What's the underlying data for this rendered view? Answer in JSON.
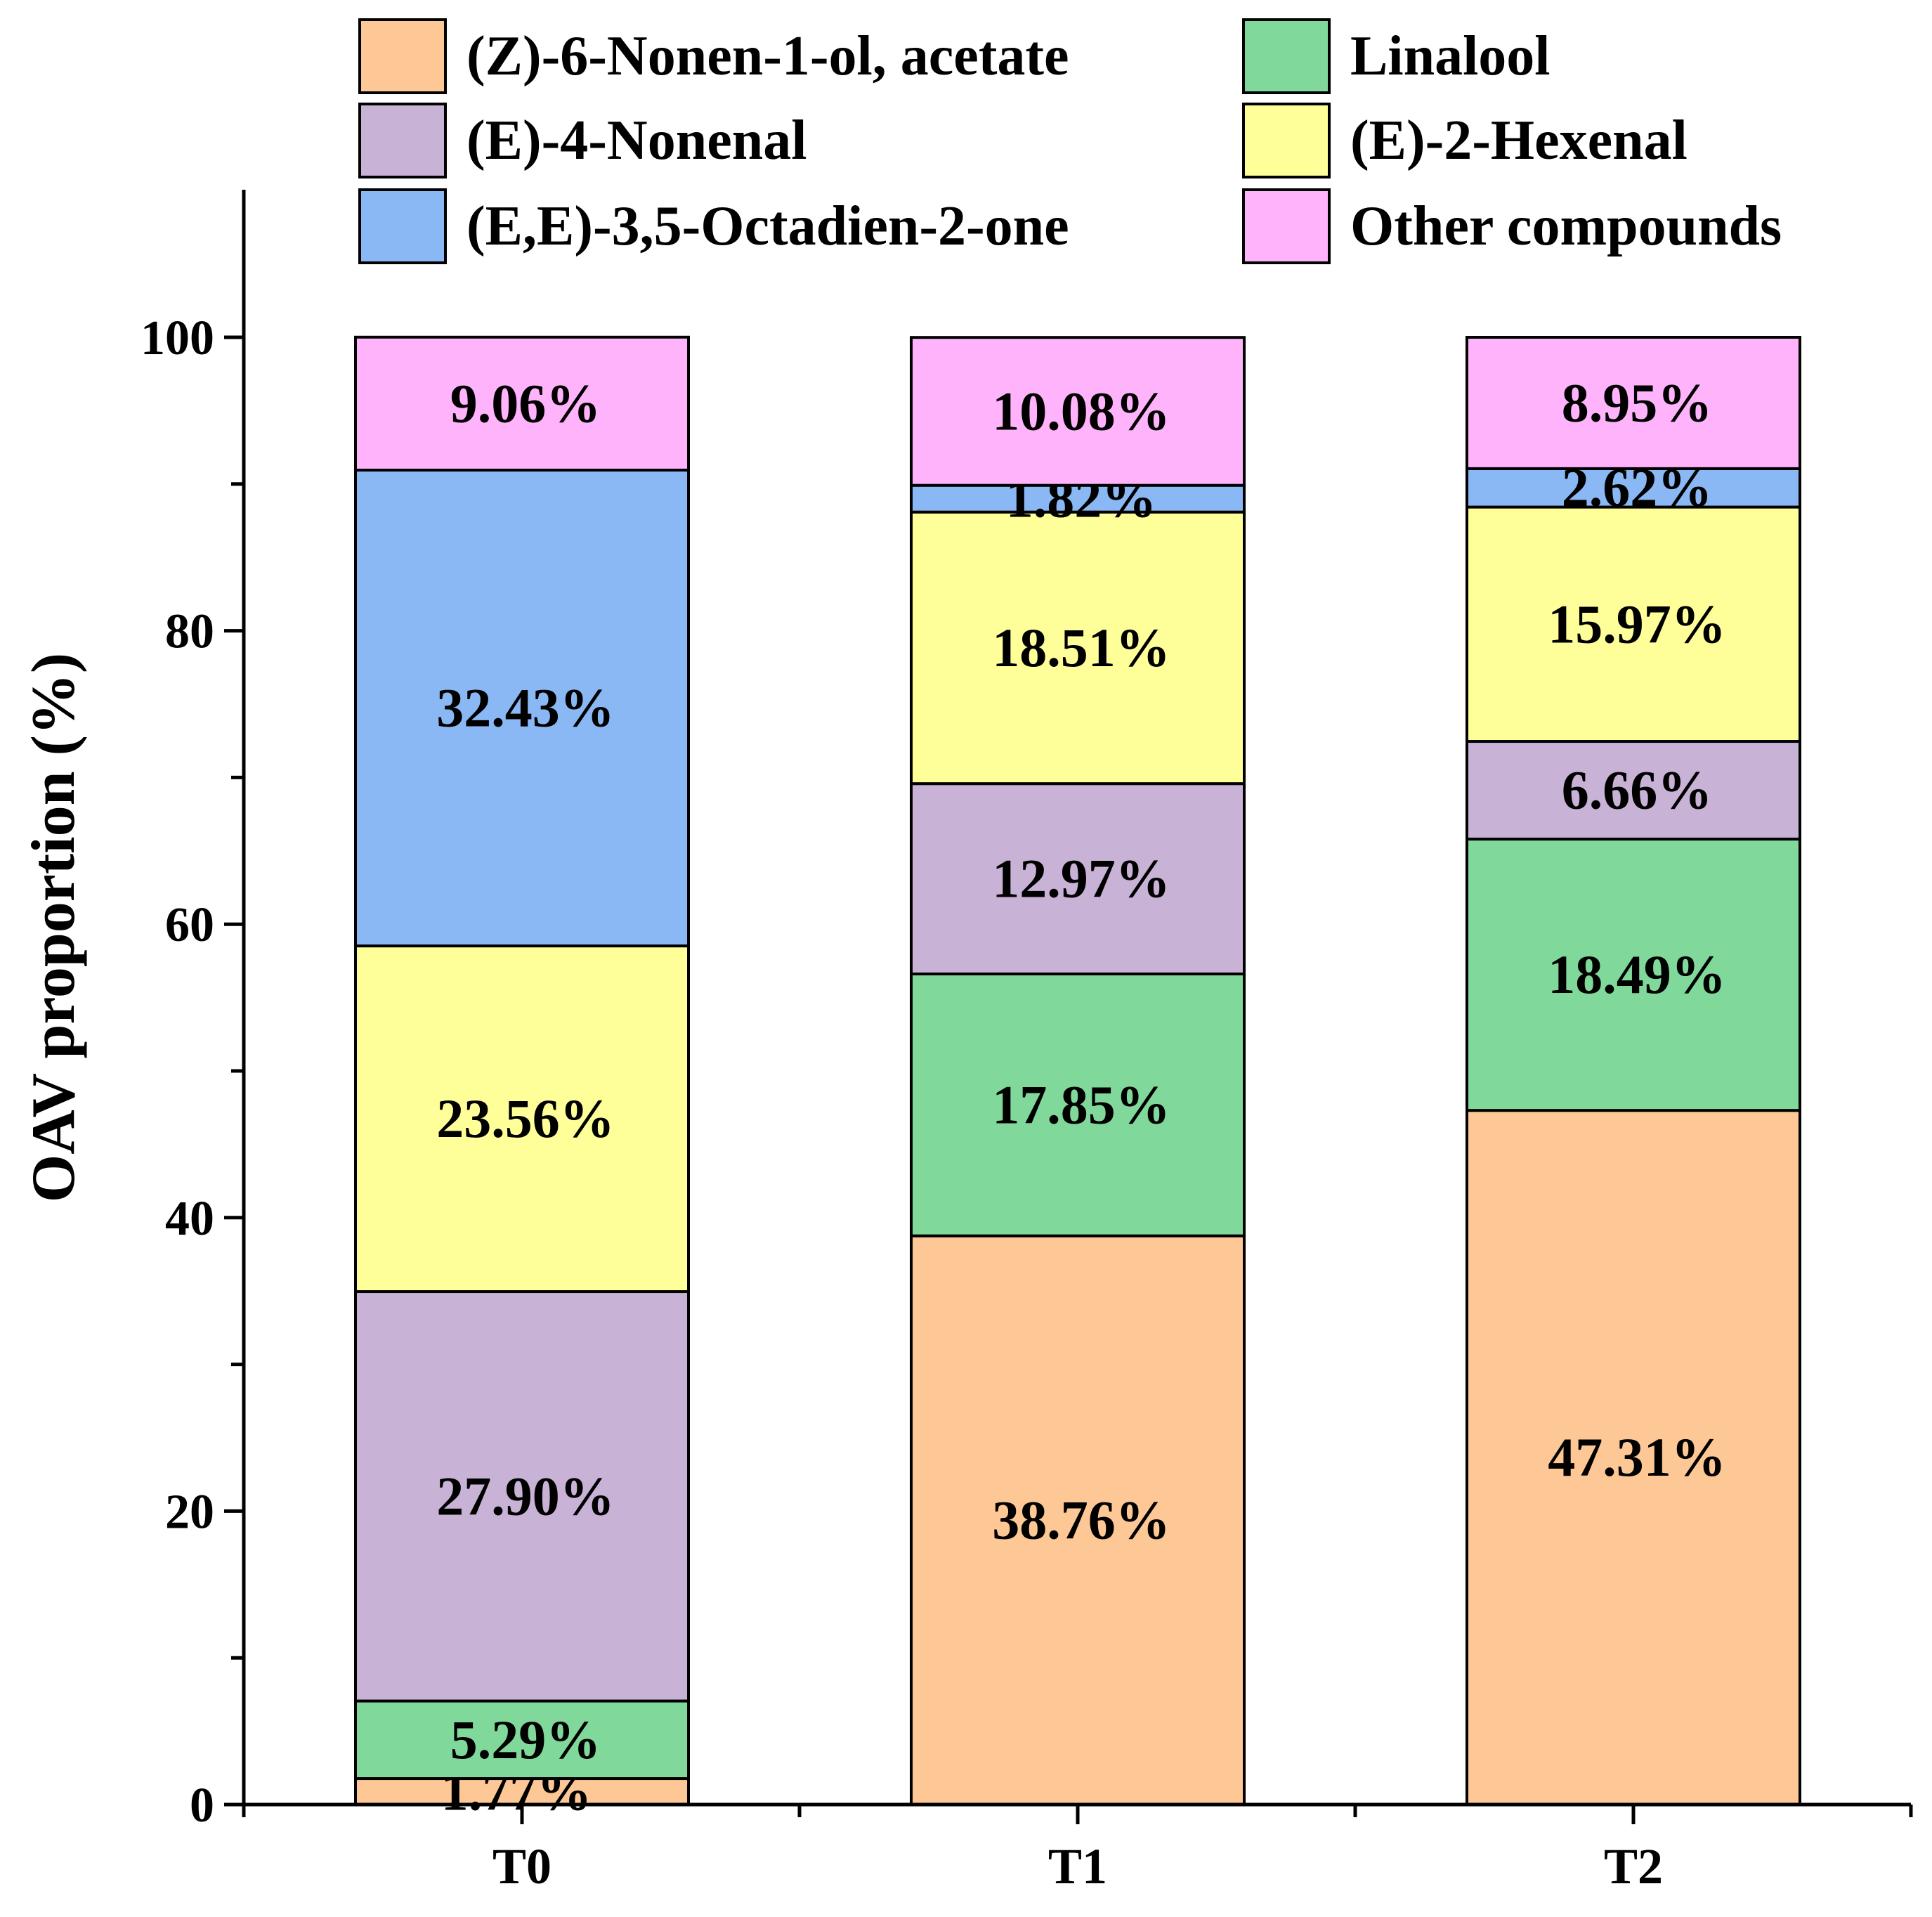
{
  "chart_data": {
    "type": "bar",
    "stacked": true,
    "title": "",
    "xlabel": "",
    "ylabel": "OAV proportion (%)",
    "ylim": [
      0,
      110
    ],
    "yticks": [
      0,
      20,
      40,
      60,
      80,
      100
    ],
    "legend_position": "top",
    "categories": [
      "T0",
      "T1",
      "T2"
    ],
    "series": [
      {
        "name": "(Z)-6-Nonen-1-ol, acetate",
        "color": "#FEC896",
        "values": [
          1.77,
          38.76,
          47.31
        ],
        "labels": [
          "1.77%",
          "38.76%",
          "47.31%"
        ]
      },
      {
        "name": "Linalool",
        "color": "#80D99B",
        "values": [
          5.29,
          17.85,
          18.49
        ],
        "labels": [
          "5.29%",
          "17.85%",
          "18.49%"
        ]
      },
      {
        "name": "(E)-4-Nonenal",
        "color": "#C8B2D6",
        "values": [
          27.9,
          12.97,
          6.66
        ],
        "labels": [
          "27.90%",
          "12.97%",
          "6.66%"
        ]
      },
      {
        "name": "(E)-2-Hexenal",
        "color": "#FFFF99",
        "values": [
          23.56,
          18.51,
          15.97
        ],
        "labels": [
          "23.56%",
          "18.51%",
          "15.97%"
        ]
      },
      {
        "name": "(E,E)-3,5-Octadien-2-one",
        "color": "#8AB8F4",
        "values": [
          32.43,
          1.82,
          2.62
        ],
        "labels": [
          "32.43%",
          "1.82%",
          "2.62%"
        ]
      },
      {
        "name": "Other compounds",
        "color": "#FFB3FB",
        "values": [
          9.06,
          10.08,
          8.95
        ],
        "labels": [
          "9.06%",
          "10.08%",
          "8.95%"
        ]
      }
    ],
    "legend_order": [
      "(Z)-6-Nonen-1-ol, acetate",
      "Linalool",
      "(E)-4-Nonenal",
      "(E)-2-Hexenal",
      "(E,E)-3,5-Octadien-2-one",
      "Other compounds"
    ]
  }
}
